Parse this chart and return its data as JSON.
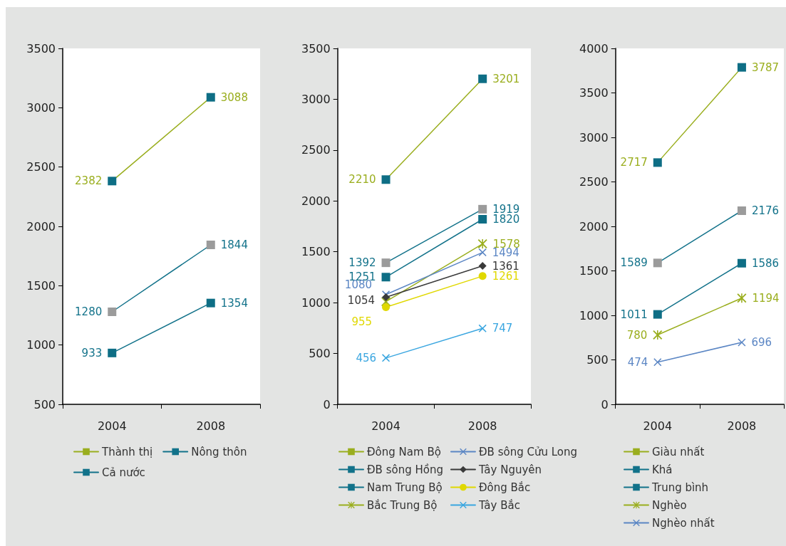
{
  "chart_data": [
    {
      "type": "line",
      "categories": [
        "2004",
        "2008"
      ],
      "ylim": [
        500,
        3500
      ],
      "yticks": [
        500,
        1000,
        1500,
        2000,
        2500,
        3000,
        3500
      ],
      "grid": false,
      "legend": "bottom",
      "data_labels": true,
      "series": [
        {
          "name": "Thành thị",
          "color": "#9aae1e",
          "colors": [
            "#0e6e85",
            "#0e6e85"
          ],
          "marker": "square",
          "values": [
            2382,
            3088
          ]
        },
        {
          "name": "Nông thôn",
          "color": "#12728a",
          "colors": [
            "#0e6e85",
            "#0e6e85"
          ],
          "marker": "square",
          "values": [
            933,
            1354
          ]
        },
        {
          "name": "Cả nước",
          "color": "#12728a",
          "colors": [
            "#9b9b9b",
            "#9b9b9b"
          ],
          "marker": "square",
          "values": [
            1280,
            1844
          ]
        }
      ]
    },
    {
      "type": "line",
      "categories": [
        "2004",
        "2008"
      ],
      "ylim": [
        0,
        3500
      ],
      "yticks": [
        0,
        500,
        1000,
        1500,
        2000,
        2500,
        3000,
        3500
      ],
      "grid": false,
      "legend": "bottom",
      "data_labels": true,
      "series": [
        {
          "name": "Đông Nam Bộ",
          "color": "#9aae1e",
          "colors": [
            "#0e6e85",
            "#0e6e85"
          ],
          "marker": "square",
          "values": [
            2210,
            3201
          ]
        },
        {
          "name": "ĐB sông Hồng",
          "color": "#12728a",
          "colors": [
            "#9b9b9b",
            "#9b9b9b"
          ],
          "marker": "square",
          "values": [
            1392,
            1919
          ]
        },
        {
          "name": "Nam Trung Bộ",
          "color": "#12728a",
          "colors": [
            "#0e6e85",
            "#0e6e85"
          ],
          "marker": "square",
          "values": [
            1251,
            1820
          ]
        },
        {
          "name": "Bắc Trung Bộ",
          "color": "#9aae1e",
          "colors": [
            "#9aae1e",
            "#9aae1e"
          ],
          "marker": "star",
          "values": [
            1010,
            1578
          ],
          "value_labels": [
            null,
            "1578"
          ]
        },
        {
          "name": "ĐB sông Cửu Long",
          "color": "#5b86c4",
          "colors": [
            "#5b86c4",
            "#5b86c4"
          ],
          "marker": "cross",
          "values": [
            1080,
            1494
          ]
        },
        {
          "name": "Tây Nguyên",
          "color": "#3a3a3a",
          "colors": [
            "#3a3a3a",
            "#3a3a3a"
          ],
          "marker": "diamond",
          "values": [
            1054,
            1361
          ]
        },
        {
          "name": "Đông Bắc",
          "color": "#e0d800",
          "colors": [
            "#e0d800",
            "#e0d800"
          ],
          "marker": "circle",
          "values": [
            955,
            1261
          ]
        },
        {
          "name": "Tây Bắc",
          "color": "#3aa6e0",
          "colors": [
            "#3aa6e0",
            "#3aa6e0"
          ],
          "marker": "cross",
          "values": [
            456,
            747
          ]
        }
      ]
    },
    {
      "type": "line",
      "categories": [
        "2004",
        "2008"
      ],
      "ylim": [
        0,
        4000
      ],
      "yticks": [
        0,
        500,
        1000,
        1500,
        2000,
        2500,
        3000,
        3500,
        4000
      ],
      "grid": false,
      "legend": "bottom",
      "data_labels": true,
      "series": [
        {
          "name": "Giàu nhất",
          "color": "#9aae1e",
          "colors": [
            "#0e6e85",
            "#0e6e85"
          ],
          "marker": "square",
          "values": [
            2717,
            3787
          ]
        },
        {
          "name": "Khá",
          "color": "#12728a",
          "colors": [
            "#9b9b9b",
            "#9b9b9b"
          ],
          "marker": "square",
          "values": [
            1589,
            2176
          ]
        },
        {
          "name": "Trung bình",
          "color": "#12728a",
          "colors": [
            "#0e6e85",
            "#0e6e85"
          ],
          "marker": "square",
          "values": [
            1011,
            1586
          ]
        },
        {
          "name": "Nghèo",
          "color": "#9aae1e",
          "colors": [
            "#9aae1e",
            "#9aae1e"
          ],
          "marker": "star",
          "values": [
            780,
            1194
          ]
        },
        {
          "name": "Nghèo nhất",
          "color": "#5b86c4",
          "colors": [
            "#5b86c4",
            "#5b86c4"
          ],
          "marker": "cross",
          "values": [
            474,
            696
          ]
        }
      ]
    }
  ]
}
